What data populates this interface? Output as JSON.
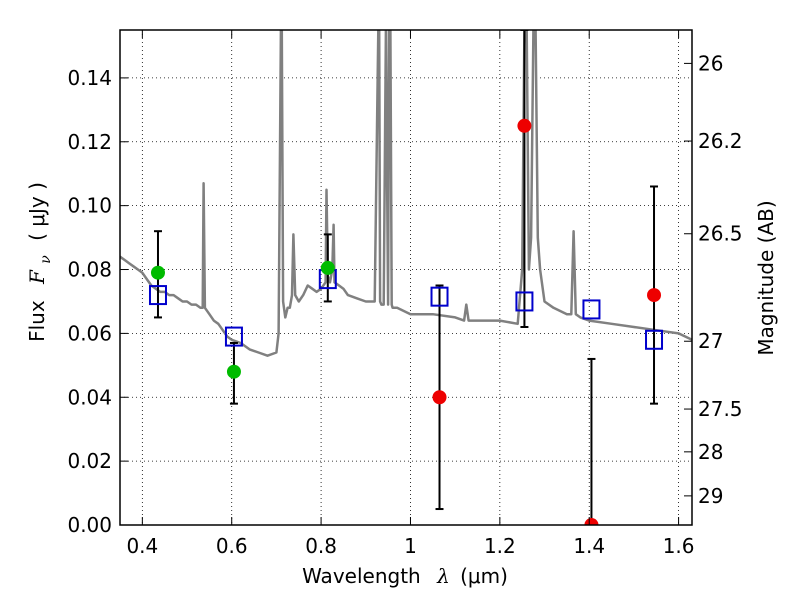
{
  "chart_data": {
    "type": "scatter",
    "xlabel_prefix": "Wavelength",
    "xlabel_symbol": "λ",
    "xlabel_unit": "(μm)",
    "ylabel_prefix": "Flux",
    "ylabel_symbol": "F",
    "ylabel_sub": "ν",
    "ylabel_unit": "( μJy )",
    "y2label": "Magnitude (AB)",
    "xlim": [
      0.35,
      1.63
    ],
    "ylim": [
      0.0,
      0.155
    ],
    "grid": true,
    "xticks": [
      {
        "value": 0.4,
        "label": "0.4"
      },
      {
        "value": 0.6,
        "label": "0.6"
      },
      {
        "value": 0.8,
        "label": "0.8"
      },
      {
        "value": 1.0,
        "label": "1"
      },
      {
        "value": 1.2,
        "label": "1.2"
      },
      {
        "value": 1.4,
        "label": "1.4"
      },
      {
        "value": 1.6,
        "label": "1.6"
      }
    ],
    "yticks": [
      {
        "value": 0.0,
        "label": "0.00"
      },
      {
        "value": 0.02,
        "label": "0.02"
      },
      {
        "value": 0.04,
        "label": "0.04"
      },
      {
        "value": 0.06,
        "label": "0.06"
      },
      {
        "value": 0.08,
        "label": "0.08"
      },
      {
        "value": 0.1,
        "label": "0.10"
      },
      {
        "value": 0.12,
        "label": "0.12"
      },
      {
        "value": 0.14,
        "label": "0.14"
      }
    ],
    "y2ticks": [
      {
        "mag": 26.0,
        "label": "26"
      },
      {
        "mag": 26.2,
        "label": "26.2"
      },
      {
        "mag": 26.5,
        "label": "26.5"
      },
      {
        "mag": 27.0,
        "label": "27"
      },
      {
        "mag": 27.5,
        "label": "27.5"
      },
      {
        "mag": 28.0,
        "label": "28"
      },
      {
        "mag": 29.0,
        "label": "29"
      }
    ],
    "series": [
      {
        "type": "line",
        "color": "#808080",
        "x": [
          0.35,
          0.36,
          0.37,
          0.38,
          0.39,
          0.4,
          0.41,
          0.42,
          0.43,
          0.44,
          0.45,
          0.46,
          0.47,
          0.48,
          0.49,
          0.5,
          0.51,
          0.52,
          0.53,
          0.535,
          0.537,
          0.54,
          0.55,
          0.56,
          0.57,
          0.58,
          0.59,
          0.6,
          0.62,
          0.64,
          0.66,
          0.68,
          0.7,
          0.705,
          0.71,
          0.712,
          0.715,
          0.72,
          0.725,
          0.73,
          0.735,
          0.738,
          0.742,
          0.75,
          0.76,
          0.77,
          0.78,
          0.79,
          0.8,
          0.81,
          0.812,
          0.815,
          0.82,
          0.825,
          0.828,
          0.83,
          0.84,
          0.85,
          0.86,
          0.88,
          0.9,
          0.92,
          0.928,
          0.93,
          0.932,
          0.935,
          0.94,
          0.945,
          0.95,
          0.952,
          0.955,
          0.958,
          0.96,
          0.97,
          1.0,
          1.05,
          1.1,
          1.12,
          1.125,
          1.13,
          1.15,
          1.2,
          1.24,
          1.25,
          1.255,
          1.26,
          1.265,
          1.27,
          1.275,
          1.28,
          1.285,
          1.29,
          1.3,
          1.32,
          1.35,
          1.36,
          1.365,
          1.37,
          1.38,
          1.4,
          1.45,
          1.5,
          1.55,
          1.6,
          1.63
        ],
        "y": [
          0.084,
          0.083,
          0.082,
          0.081,
          0.08,
          0.079,
          0.077,
          0.075,
          0.074,
          0.073,
          0.073,
          0.072,
          0.072,
          0.071,
          0.07,
          0.07,
          0.069,
          0.069,
          0.068,
          0.068,
          0.107,
          0.068,
          0.066,
          0.064,
          0.063,
          0.061,
          0.059,
          0.058,
          0.057,
          0.055,
          0.054,
          0.053,
          0.054,
          0.06,
          0.155,
          0.155,
          0.07,
          0.065,
          0.068,
          0.068,
          0.072,
          0.091,
          0.072,
          0.07,
          0.072,
          0.075,
          0.074,
          0.073,
          0.074,
          0.076,
          0.105,
          0.078,
          0.076,
          0.08,
          0.094,
          0.076,
          0.075,
          0.074,
          0.072,
          0.071,
          0.07,
          0.07,
          0.155,
          0.155,
          0.07,
          0.069,
          0.069,
          0.155,
          0.069,
          0.155,
          0.155,
          0.069,
          0.068,
          0.068,
          0.066,
          0.066,
          0.065,
          0.064,
          0.069,
          0.064,
          0.064,
          0.064,
          0.063,
          0.08,
          0.155,
          0.155,
          0.08,
          0.09,
          0.155,
          0.155,
          0.09,
          0.08,
          0.07,
          0.068,
          0.066,
          0.066,
          0.092,
          0.066,
          0.065,
          0.064,
          0.063,
          0.062,
          0.061,
          0.06,
          0.058
        ]
      },
      {
        "type": "errorbar",
        "color": "#000000",
        "points": [
          {
            "x": 0.435,
            "lo": 0.065,
            "hi": 0.092
          },
          {
            "x": 0.605,
            "lo": 0.038,
            "hi": 0.057
          },
          {
            "x": 0.815,
            "lo": 0.07,
            "hi": 0.091
          },
          {
            "x": 1.065,
            "lo": 0.005,
            "hi": 0.075
          },
          {
            "x": 1.255,
            "lo": 0.062,
            "hi": 0.155
          },
          {
            "x": 1.405,
            "lo": 0.0,
            "hi": 0.052
          },
          {
            "x": 1.545,
            "lo": 0.038,
            "hi": 0.106
          }
        ]
      },
      {
        "type": "scatter",
        "marker": "square",
        "color": "#0000cc",
        "points": [
          {
            "x": 0.435,
            "y": 0.072
          },
          {
            "x": 0.605,
            "y": 0.059
          },
          {
            "x": 0.815,
            "y": 0.077
          },
          {
            "x": 1.065,
            "y": 0.0715
          },
          {
            "x": 1.255,
            "y": 0.07
          },
          {
            "x": 1.405,
            "y": 0.0675
          },
          {
            "x": 1.545,
            "y": 0.058
          }
        ]
      },
      {
        "type": "scatter",
        "marker": "circle",
        "color": "#00bb00",
        "points": [
          {
            "x": 0.435,
            "y": 0.079
          },
          {
            "x": 0.605,
            "y": 0.048
          },
          {
            "x": 0.815,
            "y": 0.0805
          }
        ]
      },
      {
        "type": "scatter",
        "marker": "circle",
        "color": "#ee0000",
        "points": [
          {
            "x": 1.065,
            "y": 0.04
          },
          {
            "x": 1.255,
            "y": 0.125
          },
          {
            "x": 1.405,
            "y": 0.0
          },
          {
            "x": 1.545,
            "y": 0.072
          }
        ]
      }
    ]
  }
}
